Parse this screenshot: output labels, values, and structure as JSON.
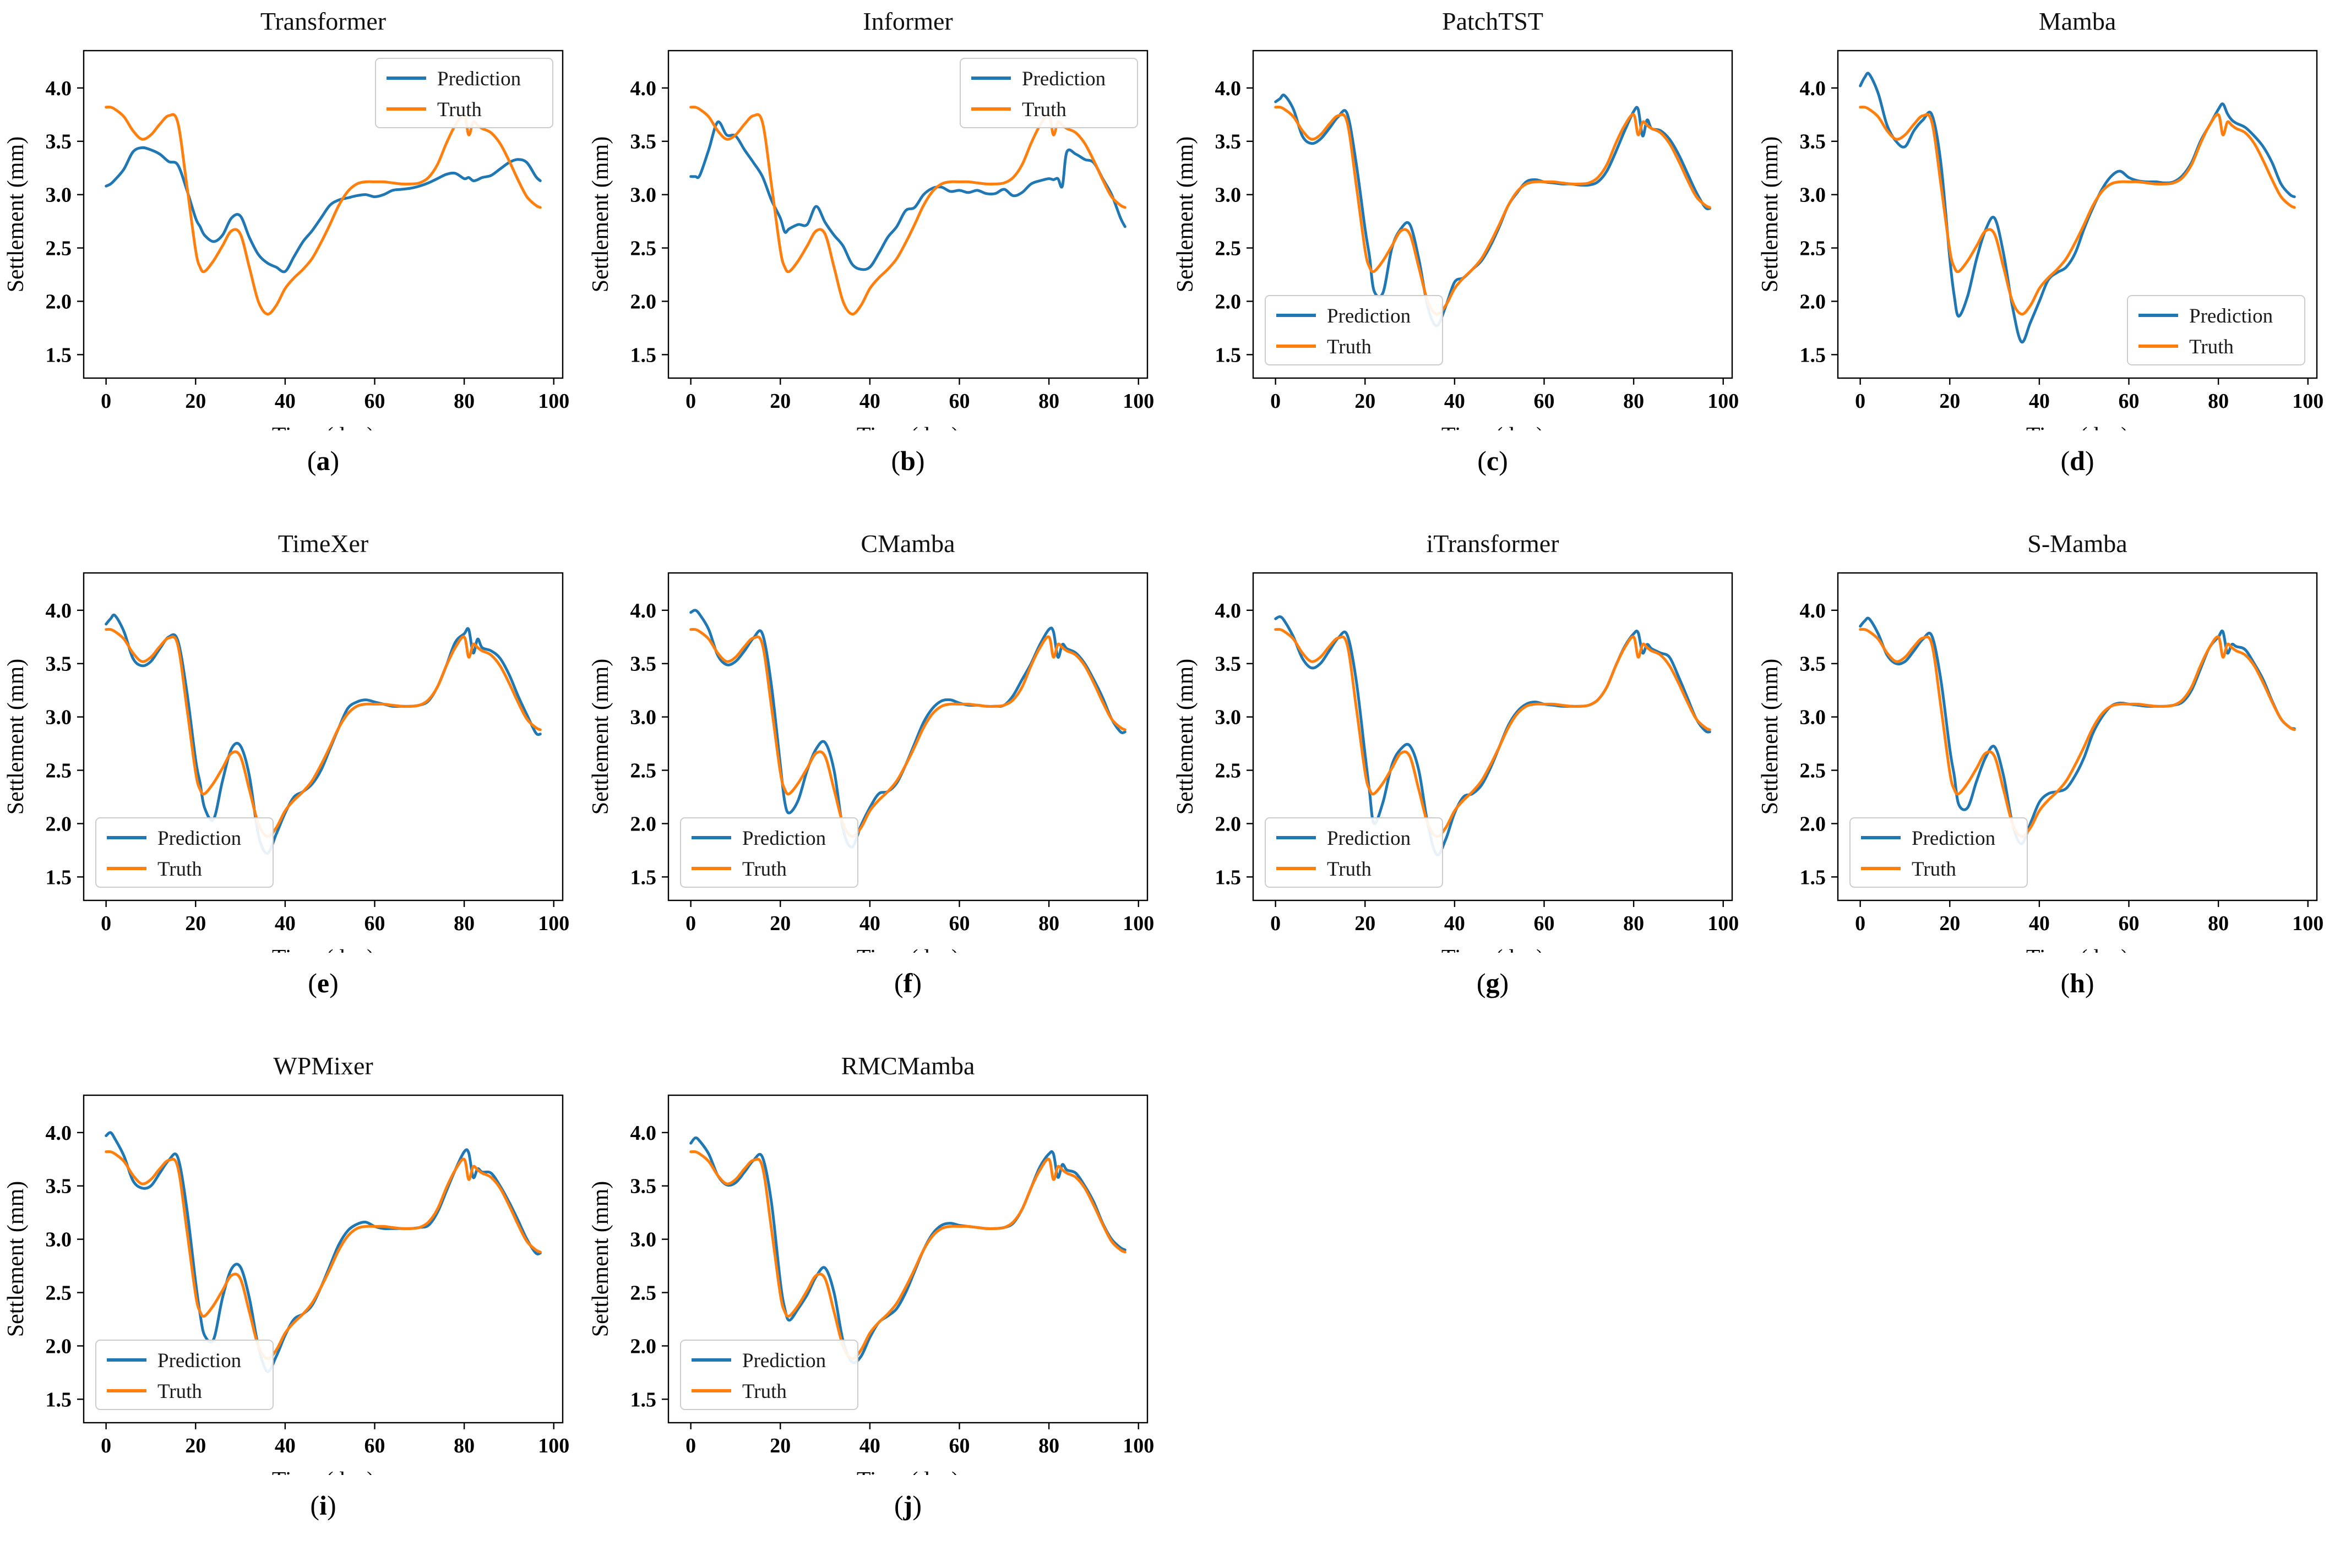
{
  "figure": {
    "description_note": "Ten line-chart panels comparing model Prediction vs Truth settlement curves"
  },
  "chart_data": {
    "type": "line",
    "xlabel": "Time (day)",
    "ylabel": "Settlement (mm)",
    "x_ticks": [
      0,
      20,
      40,
      60,
      80,
      100
    ],
    "y_ticks": [
      1.5,
      2.0,
      2.5,
      3.0,
      3.5,
      4.0
    ],
    "xlim": [
      -5,
      102
    ],
    "ylim": [
      1.28,
      4.35
    ],
    "grid": false,
    "colors": {
      "prediction": "#1f77b4",
      "truth": "#ff7f0e"
    },
    "legend": {
      "prediction_label": "Prediction",
      "truth_label": "Truth"
    },
    "x": [
      0,
      1,
      2,
      4,
      6,
      8,
      10,
      12,
      14,
      16,
      18,
      20,
      21,
      22,
      24,
      26,
      28,
      30,
      32,
      34,
      36,
      38,
      40,
      42,
      44,
      46,
      48,
      50,
      52,
      54,
      56,
      58,
      60,
      62,
      64,
      66,
      68,
      70,
      72,
      74,
      76,
      78,
      80,
      81,
      82,
      83,
      84,
      86,
      88,
      90,
      92,
      94,
      96,
      97
    ],
    "truth": [
      3.82,
      3.82,
      3.8,
      3.73,
      3.6,
      3.52,
      3.56,
      3.66,
      3.74,
      3.68,
      3.1,
      2.48,
      2.32,
      2.28,
      2.38,
      2.52,
      2.66,
      2.63,
      2.32,
      2.0,
      1.88,
      1.96,
      2.12,
      2.22,
      2.3,
      2.4,
      2.55,
      2.72,
      2.9,
      3.03,
      3.1,
      3.12,
      3.12,
      3.12,
      3.11,
      3.1,
      3.1,
      3.11,
      3.16,
      3.28,
      3.48,
      3.65,
      3.75,
      3.56,
      3.68,
      3.65,
      3.62,
      3.58,
      3.48,
      3.32,
      3.14,
      2.98,
      2.9,
      2.88
    ],
    "panels": [
      {
        "title": "Transformer",
        "caption": {
          "open": "(",
          "letter": "a",
          "close": ")"
        },
        "legend_loc": "upper-right",
        "prediction": [
          3.08,
          3.1,
          3.14,
          3.24,
          3.4,
          3.44,
          3.42,
          3.38,
          3.31,
          3.28,
          3.05,
          2.78,
          2.7,
          2.62,
          2.56,
          2.62,
          2.78,
          2.8,
          2.6,
          2.44,
          2.36,
          2.32,
          2.28,
          2.42,
          2.56,
          2.66,
          2.78,
          2.9,
          2.95,
          2.97,
          2.99,
          3.0,
          2.98,
          3.0,
          3.04,
          3.05,
          3.06,
          3.08,
          3.11,
          3.15,
          3.19,
          3.2,
          3.15,
          3.16,
          3.13,
          3.14,
          3.16,
          3.18,
          3.24,
          3.3,
          3.33,
          3.3,
          3.17,
          3.13
        ]
      },
      {
        "title": "Informer",
        "caption": {
          "open": "(",
          "letter": "b",
          "close": ")"
        },
        "legend_loc": "upper-right",
        "prediction": [
          3.17,
          3.17,
          3.18,
          3.42,
          3.68,
          3.56,
          3.55,
          3.42,
          3.3,
          3.17,
          2.95,
          2.78,
          2.65,
          2.68,
          2.72,
          2.72,
          2.89,
          2.74,
          2.62,
          2.52,
          2.35,
          2.3,
          2.32,
          2.45,
          2.6,
          2.7,
          2.85,
          2.88,
          3.0,
          3.06,
          3.07,
          3.03,
          3.04,
          3.02,
          3.04,
          3.01,
          3.01,
          3.05,
          2.99,
          3.02,
          3.1,
          3.13,
          3.15,
          3.14,
          3.15,
          3.08,
          3.4,
          3.38,
          3.33,
          3.3,
          3.15,
          3.0,
          2.78,
          2.7
        ]
      },
      {
        "title": "PatchTST",
        "caption": {
          "open": "(",
          "letter": "c",
          "close": ")"
        },
        "legend_loc": "lower-left",
        "prediction": [
          3.87,
          3.9,
          3.93,
          3.8,
          3.55,
          3.48,
          3.52,
          3.62,
          3.73,
          3.76,
          3.3,
          2.68,
          2.42,
          2.1,
          2.08,
          2.5,
          2.68,
          2.72,
          2.4,
          1.95,
          1.77,
          1.95,
          2.18,
          2.22,
          2.3,
          2.38,
          2.52,
          2.7,
          2.9,
          3.02,
          3.12,
          3.14,
          3.12,
          3.11,
          3.1,
          3.1,
          3.09,
          3.09,
          3.12,
          3.22,
          3.4,
          3.6,
          3.78,
          3.8,
          3.55,
          3.7,
          3.62,
          3.6,
          3.52,
          3.38,
          3.2,
          3.02,
          2.88,
          2.87
        ]
      },
      {
        "title": "Mamba",
        "caption": {
          "open": "(",
          "letter": "d",
          "close": ")"
        },
        "legend_loc": "lower-right",
        "prediction": [
          4.02,
          4.1,
          4.13,
          3.95,
          3.65,
          3.5,
          3.45,
          3.6,
          3.7,
          3.75,
          3.3,
          2.4,
          2.05,
          1.86,
          2.05,
          2.4,
          2.67,
          2.78,
          2.45,
          1.95,
          1.62,
          1.8,
          2.0,
          2.2,
          2.27,
          2.32,
          2.45,
          2.68,
          2.88,
          3.05,
          3.17,
          3.22,
          3.16,
          3.13,
          3.12,
          3.12,
          3.11,
          3.12,
          3.18,
          3.3,
          3.5,
          3.65,
          3.8,
          3.85,
          3.76,
          3.7,
          3.67,
          3.63,
          3.55,
          3.45,
          3.3,
          3.1,
          3.0,
          2.98
        ]
      },
      {
        "title": "TimeXer",
        "caption": {
          "open": "(",
          "letter": "e",
          "close": ")"
        },
        "legend_loc": "lower-left",
        "prediction": [
          3.87,
          3.92,
          3.95,
          3.8,
          3.55,
          3.48,
          3.52,
          3.64,
          3.75,
          3.72,
          3.25,
          2.6,
          2.38,
          2.15,
          2.04,
          2.4,
          2.7,
          2.73,
          2.45,
          1.9,
          1.72,
          1.9,
          2.1,
          2.25,
          2.3,
          2.37,
          2.5,
          2.7,
          2.9,
          3.08,
          3.14,
          3.16,
          3.14,
          3.12,
          3.1,
          3.1,
          3.1,
          3.11,
          3.15,
          3.28,
          3.48,
          3.7,
          3.78,
          3.82,
          3.6,
          3.73,
          3.65,
          3.62,
          3.55,
          3.4,
          3.2,
          3.02,
          2.85,
          2.84
        ]
      },
      {
        "title": "CMamba",
        "caption": {
          "open": "(",
          "letter": "f",
          "close": ")"
        },
        "legend_loc": "lower-left",
        "prediction": [
          3.98,
          4.0,
          3.96,
          3.82,
          3.58,
          3.49,
          3.52,
          3.62,
          3.74,
          3.78,
          3.3,
          2.55,
          2.2,
          2.1,
          2.22,
          2.5,
          2.7,
          2.76,
          2.5,
          1.95,
          1.78,
          1.98,
          2.15,
          2.28,
          2.3,
          2.38,
          2.55,
          2.75,
          2.95,
          3.08,
          3.15,
          3.16,
          3.13,
          3.11,
          3.11,
          3.1,
          3.1,
          3.11,
          3.2,
          3.35,
          3.5,
          3.68,
          3.82,
          3.8,
          3.56,
          3.68,
          3.64,
          3.6,
          3.5,
          3.35,
          3.18,
          2.98,
          2.86,
          2.86
        ]
      },
      {
        "title": "iTransformer",
        "caption": {
          "open": "(",
          "letter": "g",
          "close": ")"
        },
        "legend_loc": "lower-left",
        "prediction": [
          3.92,
          3.94,
          3.9,
          3.75,
          3.55,
          3.46,
          3.5,
          3.62,
          3.74,
          3.77,
          3.35,
          2.65,
          2.3,
          2.0,
          2.2,
          2.55,
          2.7,
          2.73,
          2.5,
          2.0,
          1.71,
          1.85,
          2.1,
          2.25,
          2.28,
          2.36,
          2.52,
          2.72,
          2.92,
          3.05,
          3.12,
          3.14,
          3.12,
          3.11,
          3.1,
          3.1,
          3.1,
          3.11,
          3.16,
          3.28,
          3.48,
          3.66,
          3.78,
          3.79,
          3.6,
          3.68,
          3.64,
          3.6,
          3.56,
          3.38,
          3.18,
          2.98,
          2.87,
          2.86
        ]
      },
      {
        "title": "S-Mamba",
        "caption": {
          "open": "(",
          "letter": "h",
          "close": ")"
        },
        "legend_loc": "lower-left",
        "prediction": [
          3.85,
          3.9,
          3.92,
          3.78,
          3.58,
          3.5,
          3.52,
          3.62,
          3.73,
          3.76,
          3.35,
          2.7,
          2.45,
          2.18,
          2.15,
          2.4,
          2.62,
          2.72,
          2.45,
          2.0,
          1.81,
          2.0,
          2.2,
          2.28,
          2.3,
          2.33,
          2.45,
          2.62,
          2.85,
          3.0,
          3.1,
          3.13,
          3.12,
          3.11,
          3.1,
          3.1,
          3.1,
          3.11,
          3.14,
          3.25,
          3.45,
          3.65,
          3.75,
          3.8,
          3.6,
          3.68,
          3.66,
          3.63,
          3.5,
          3.35,
          3.15,
          2.98,
          2.9,
          2.89
        ]
      },
      {
        "title": "WPMixer",
        "caption": {
          "open": "(",
          "letter": "i",
          "close": ")"
        },
        "legend_loc": "lower-left",
        "prediction": [
          3.97,
          4.0,
          3.94,
          3.78,
          3.55,
          3.48,
          3.5,
          3.62,
          3.74,
          3.77,
          3.3,
          2.6,
          2.3,
          2.1,
          2.06,
          2.45,
          2.72,
          2.74,
          2.45,
          2.0,
          1.76,
          1.9,
          2.1,
          2.25,
          2.3,
          2.38,
          2.55,
          2.75,
          2.95,
          3.08,
          3.14,
          3.16,
          3.12,
          3.1,
          3.1,
          3.1,
          3.1,
          3.11,
          3.13,
          3.25,
          3.45,
          3.65,
          3.82,
          3.81,
          3.58,
          3.66,
          3.63,
          3.62,
          3.5,
          3.35,
          3.18,
          3.0,
          2.87,
          2.87
        ]
      },
      {
        "title": "RMCMamba",
        "caption": {
          "open": "(",
          "letter": "j",
          "close": ")"
        },
        "legend_loc": "lower-left",
        "prediction": [
          3.9,
          3.95,
          3.92,
          3.8,
          3.6,
          3.51,
          3.53,
          3.63,
          3.74,
          3.77,
          3.35,
          2.6,
          2.35,
          2.24,
          2.35,
          2.48,
          2.65,
          2.73,
          2.5,
          2.05,
          1.85,
          1.9,
          2.08,
          2.22,
          2.28,
          2.35,
          2.5,
          2.7,
          2.9,
          3.05,
          3.13,
          3.15,
          3.13,
          3.12,
          3.11,
          3.1,
          3.1,
          3.11,
          3.15,
          3.28,
          3.48,
          3.68,
          3.8,
          3.8,
          3.58,
          3.7,
          3.65,
          3.62,
          3.5,
          3.35,
          3.15,
          3.0,
          2.92,
          2.9
        ]
      }
    ]
  }
}
